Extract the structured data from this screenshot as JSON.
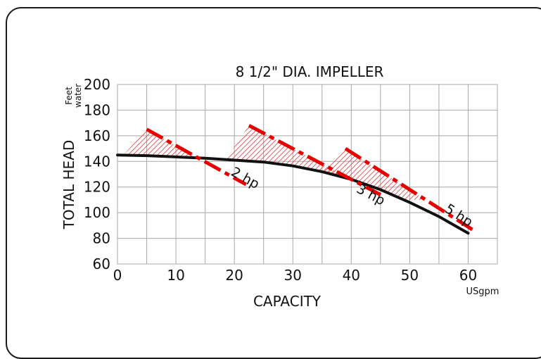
{
  "chart_data": {
    "type": "line",
    "title": "8 1/2\" DIA. IMPELLER",
    "xlabel": "CAPACITY",
    "xunit": "USgpm",
    "ylabel": "TOTAL HEAD",
    "yunit": "Feet water",
    "xlim": [
      0,
      65
    ],
    "ylim": [
      60,
      200
    ],
    "xticks": [
      0,
      10,
      20,
      30,
      40,
      50,
      60
    ],
    "yticks": [
      60,
      80,
      100,
      120,
      140,
      160,
      180,
      200
    ],
    "grid": true,
    "series": [
      {
        "name": "",
        "color": "#111111",
        "x": [
          0,
          5,
          10,
          15,
          20,
          25,
          30,
          35,
          40,
          45,
          50,
          55,
          60
        ],
        "y": [
          145,
          144.5,
          143.5,
          142.5,
          141,
          139.5,
          136.5,
          132,
          126,
          118,
          108,
          97,
          84
        ]
      }
    ],
    "power_limits": [
      {
        "label": "2 hp",
        "color": "#e60000",
        "x": [
          5,
          22
        ],
        "y": [
          165,
          122
        ]
      },
      {
        "label": "3 hp",
        "color": "#e60000",
        "x": [
          22.5,
          45
        ],
        "y": [
          168,
          114
        ]
      },
      {
        "label": "5 hp",
        "color": "#e60000",
        "x": [
          39,
          61
        ],
        "y": [
          150,
          86
        ]
      }
    ]
  }
}
